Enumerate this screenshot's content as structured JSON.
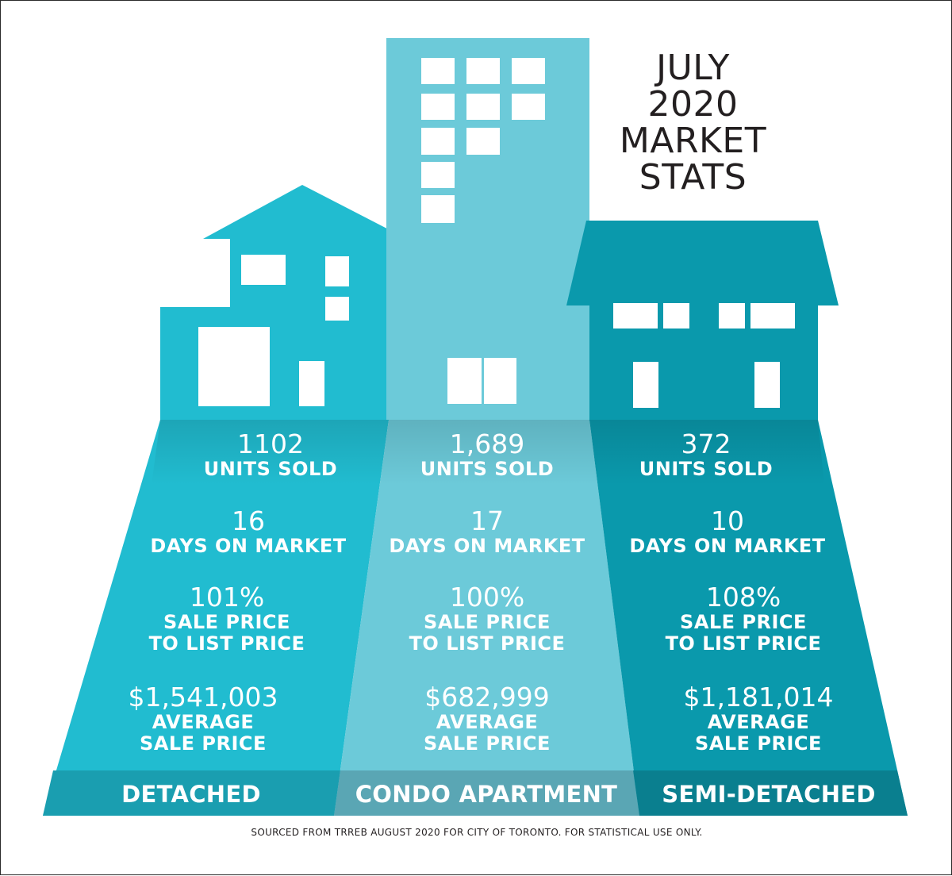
{
  "title": {
    "line1": "JULY",
    "line2": "2020",
    "line3": "MARKET",
    "line4": "STATS"
  },
  "colors": {
    "detached": "#21bcd0",
    "condo": "#6ccad9",
    "semi": "#0a99ac",
    "band_detached": "#1a9eb0",
    "band_condo": "#5aa6b4",
    "band_semi": "#0a7f8f"
  },
  "columns": [
    {
      "category": "DETACHED",
      "units_value": "1102",
      "units_label": "UNITS SOLD",
      "days_value": "16",
      "days_label": "DAYS ON MARKET",
      "ratio_value": "101%",
      "ratio_label_1": "SALE PRICE",
      "ratio_label_2": "TO LIST PRICE",
      "price_value": "$1,541,003",
      "price_label_1": "AVERAGE",
      "price_label_2": "SALE PRICE"
    },
    {
      "category": "CONDO APARTMENT",
      "units_value": "1,689",
      "units_label": "UNITS SOLD",
      "days_value": "17",
      "days_label": "DAYS ON MARKET",
      "ratio_value": "100%",
      "ratio_label_1": "SALE PRICE",
      "ratio_label_2": "TO LIST PRICE",
      "price_value": "$682,999",
      "price_label_1": "AVERAGE",
      "price_label_2": "SALE PRICE"
    },
    {
      "category": "SEMI-DETACHED",
      "units_value": "372",
      "units_label": "UNITS SOLD",
      "days_value": "10",
      "days_label": "DAYS ON MARKET",
      "ratio_value": "108%",
      "ratio_label_1": "SALE PRICE",
      "ratio_label_2": "TO LIST PRICE",
      "price_value": "$1,181,014",
      "price_label_1": "AVERAGE",
      "price_label_2": "SALE PRICE"
    }
  ],
  "footer": "SOURCED FROM TRREB AUGUST 2020 FOR CITY OF TORONTO. FOR STATISTICAL USE ONLY."
}
